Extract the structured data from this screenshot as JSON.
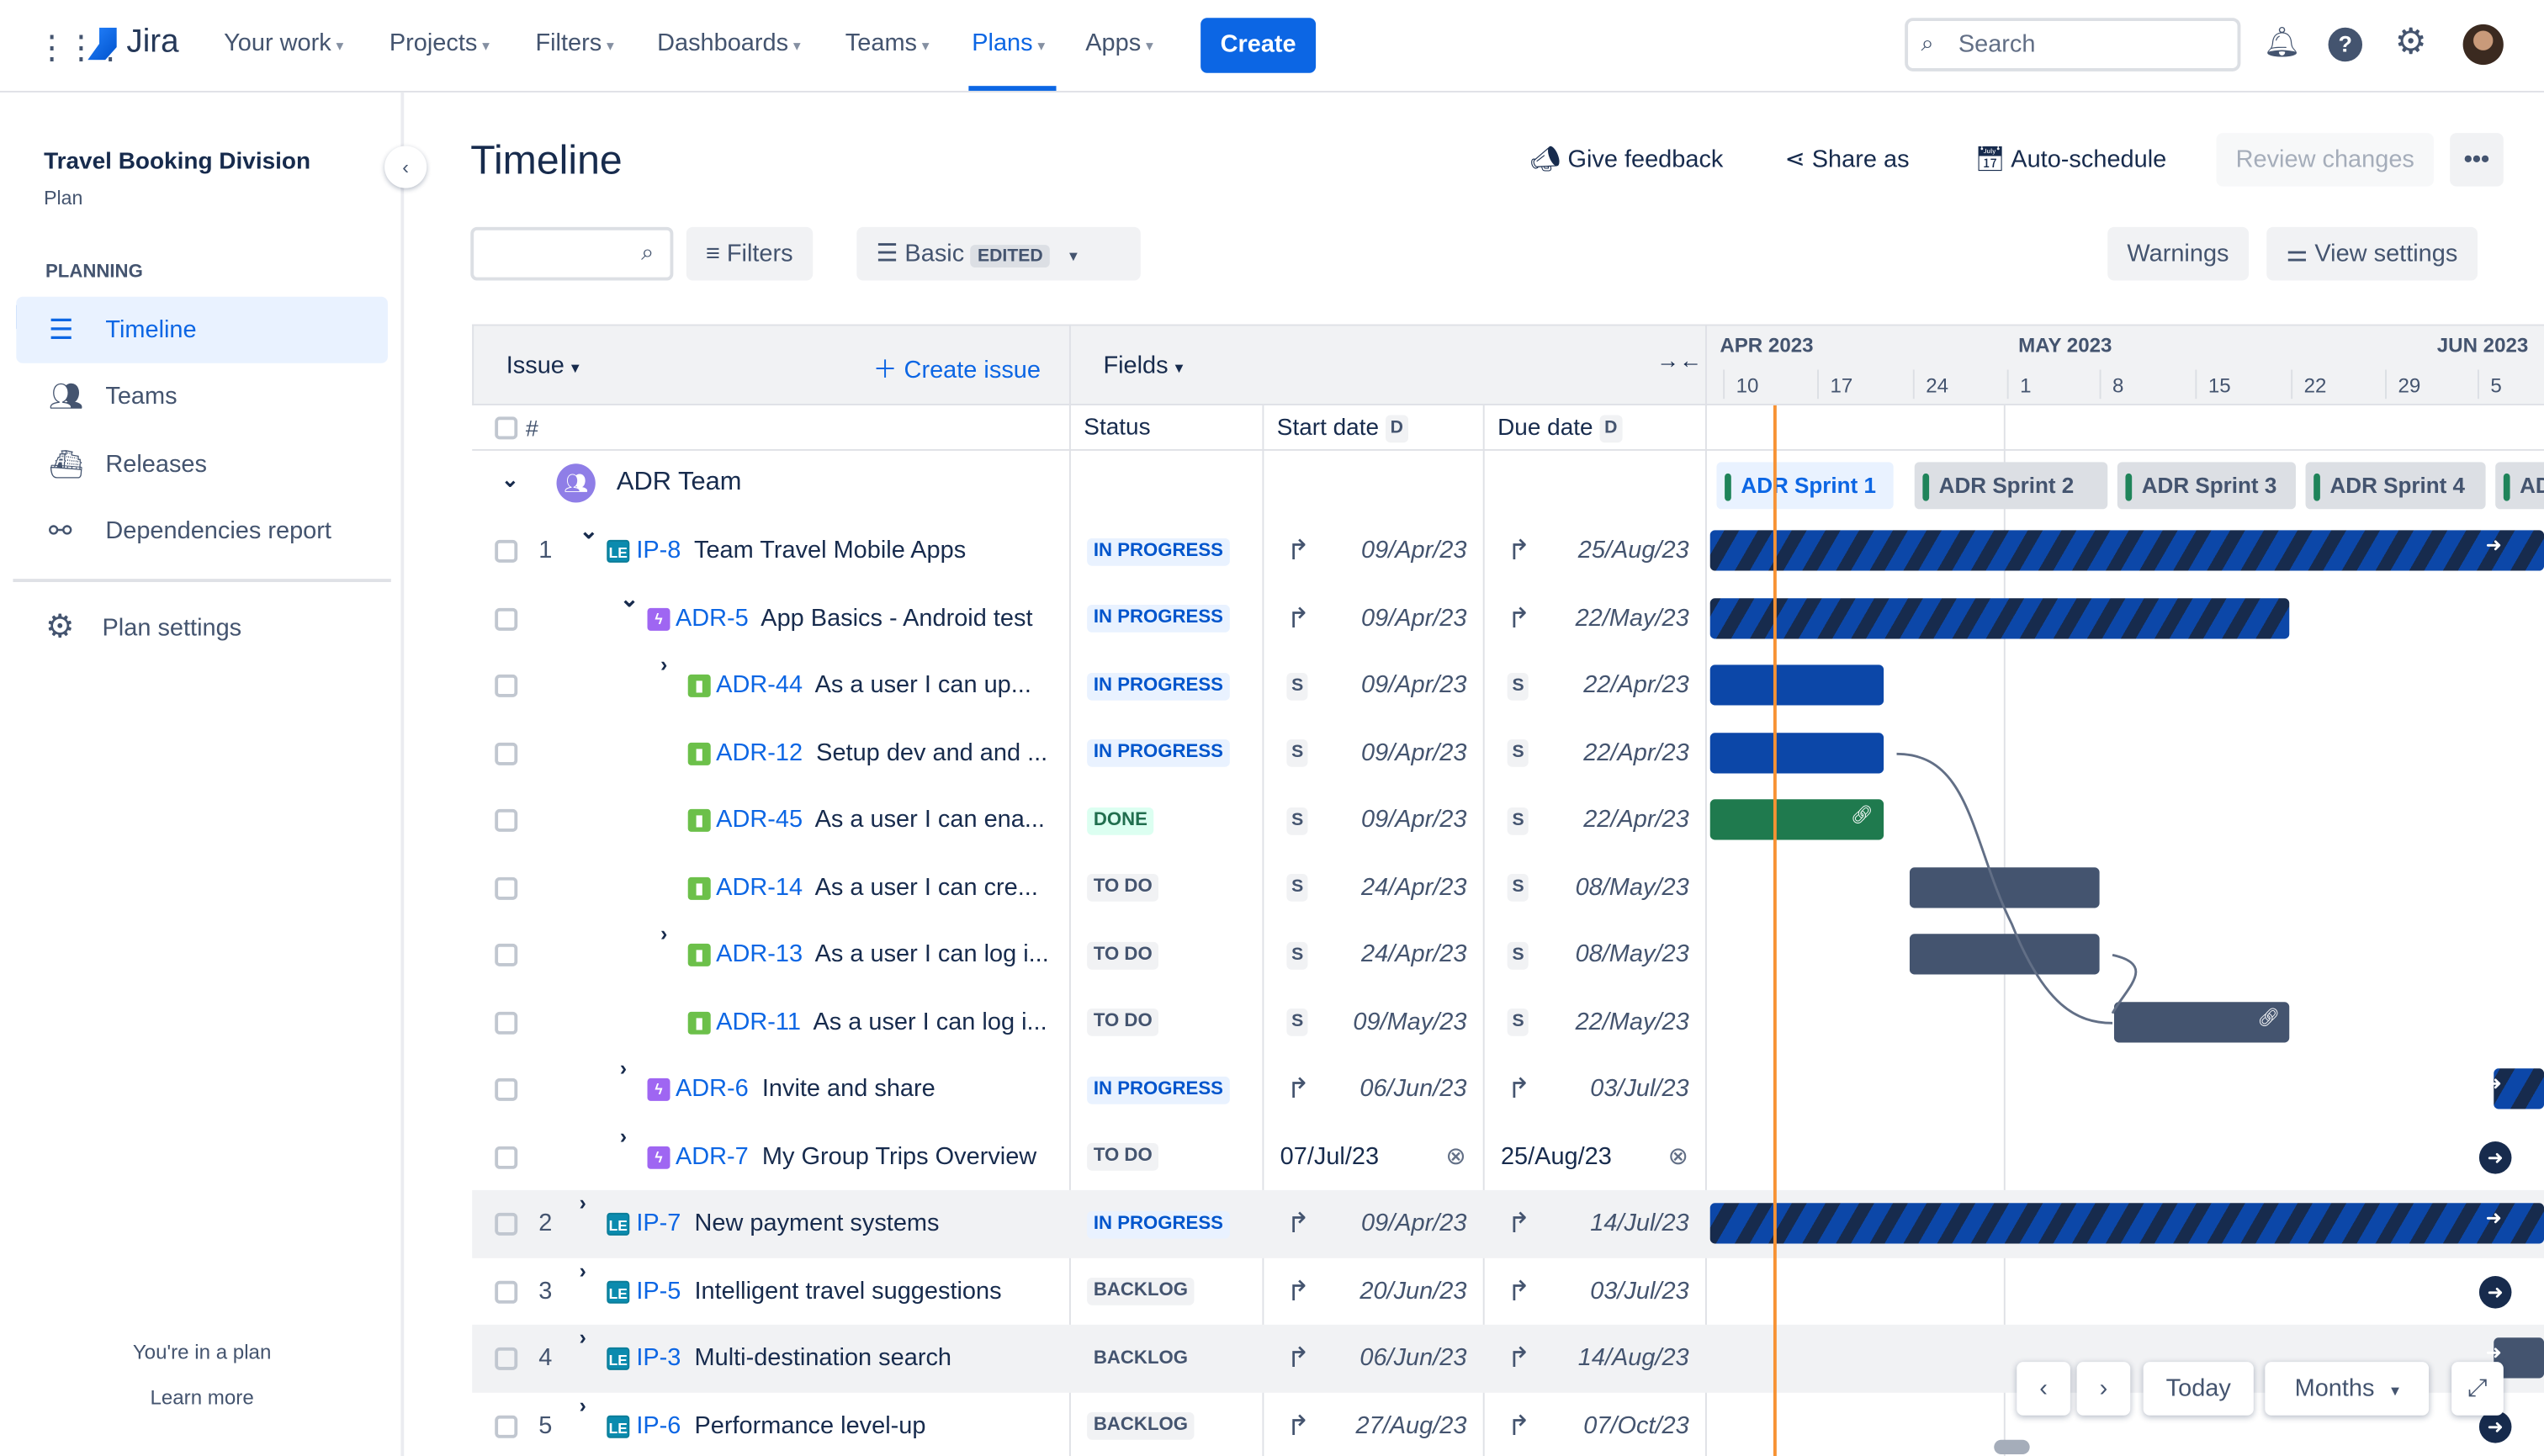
{
  "nav": {
    "product": "Jira",
    "items": [
      {
        "label": "Your work"
      },
      {
        "label": "Projects"
      },
      {
        "label": "Filters"
      },
      {
        "label": "Dashboards"
      },
      {
        "label": "Teams"
      },
      {
        "label": "Plans",
        "active": true
      },
      {
        "label": "Apps"
      }
    ],
    "create": "Create",
    "search_placeholder": "Search"
  },
  "sidebar": {
    "plan_name": "Travel Booking Division",
    "plan_type": "Plan",
    "section": "PLANNING",
    "items": [
      {
        "label": "Timeline",
        "selected": true
      },
      {
        "label": "Teams"
      },
      {
        "label": "Releases"
      },
      {
        "label": "Dependencies report"
      }
    ],
    "settings": "Plan settings",
    "footer_text": "You're in a plan",
    "footer_link": "Learn more"
  },
  "page": {
    "title": "Timeline",
    "actions": {
      "feedback": "Give feedback",
      "share": "Share as",
      "autoschedule": "Auto-schedule",
      "review": "Review changes"
    }
  },
  "toolbar": {
    "search_value": "",
    "filters": "Filters",
    "view": "Basic",
    "view_badge": "EDITED",
    "warnings": "Warnings",
    "view_settings": "View settings"
  },
  "table": {
    "issue_header": "Issue",
    "create_issue": "Create issue",
    "fields": "Fields",
    "hash": "#",
    "status": "Status",
    "start_date": "Start date",
    "due_date": "Due date",
    "date_badge": "D",
    "team": "ADR Team"
  },
  "timeline": {
    "months": [
      "APR 2023",
      "MAY 2023",
      "JUN 2023"
    ],
    "weeks": [
      "10",
      "17",
      "24",
      "1",
      "8",
      "15",
      "22",
      "29",
      "5"
    ],
    "today": "14/Apr/23",
    "sprints": [
      "ADR Sprint 1",
      "ADR Sprint 2",
      "ADR Sprint 3",
      "ADR Sprint 4",
      "AD"
    ]
  },
  "rows": [
    {
      "num": "1",
      "level": 0,
      "expand": "down",
      "type": "LE",
      "key": "IP-8",
      "summary": "Team Travel Mobile Apps",
      "status": "IN PROGRESS",
      "start_icon": "arrow",
      "start": "09/Apr/23",
      "due_icon": "arrow",
      "due": "25/Aug/23",
      "bar": "stripe"
    },
    {
      "num": "",
      "level": 1,
      "expand": "down",
      "type": "epic",
      "key": "ADR-5",
      "summary": "App Basics - Android test",
      "status": "IN PROGRESS",
      "start_icon": "arrow",
      "start": "09/Apr/23",
      "due_icon": "arrow",
      "due": "22/May/23",
      "bar": "stripe"
    },
    {
      "num": "",
      "level": 2,
      "expand": "right",
      "type": "story",
      "key": "ADR-44",
      "summary": "As a user I can up...",
      "status": "IN PROGRESS",
      "start_icon": "S",
      "start": "09/Apr/23",
      "due_icon": "S",
      "due": "22/Apr/23",
      "bar": "blue"
    },
    {
      "num": "",
      "level": 2,
      "expand": "none",
      "type": "story",
      "key": "ADR-12",
      "summary": "Setup dev and and ...",
      "status": "IN PROGRESS",
      "start_icon": "S",
      "start": "09/Apr/23",
      "due_icon": "S",
      "due": "22/Apr/23",
      "bar": "blue"
    },
    {
      "num": "",
      "level": 2,
      "expand": "none",
      "type": "story",
      "key": "ADR-45",
      "summary": "As a user I can ena...",
      "status": "DONE",
      "start_icon": "S",
      "start": "09/Apr/23",
      "due_icon": "S",
      "due": "22/Apr/23",
      "bar": "green"
    },
    {
      "num": "",
      "level": 2,
      "expand": "none",
      "type": "story",
      "key": "ADR-14",
      "summary": "As a user I can cre...",
      "status": "TO DO",
      "start_icon": "S",
      "start": "24/Apr/23",
      "due_icon": "S",
      "due": "08/May/23",
      "bar": "todo"
    },
    {
      "num": "",
      "level": 2,
      "expand": "right",
      "type": "story",
      "key": "ADR-13",
      "summary": "As a user I can log i...",
      "status": "TO DO",
      "start_icon": "S",
      "start": "24/Apr/23",
      "due_icon": "S",
      "due": "08/May/23",
      "bar": "todo"
    },
    {
      "num": "",
      "level": 2,
      "expand": "none",
      "type": "story",
      "key": "ADR-11",
      "summary": "As a user I can log i...",
      "status": "TO DO",
      "start_icon": "S",
      "start": "09/May/23",
      "due_icon": "S",
      "due": "22/May/23",
      "bar": "todo"
    },
    {
      "num": "",
      "level": 1,
      "expand": "right",
      "type": "epic",
      "key": "ADR-6",
      "summary": "Invite and share",
      "status": "IN PROGRESS",
      "start_icon": "arrow",
      "start": "06/Jun/23",
      "due_icon": "arrow",
      "due": "03/Jul/23",
      "bar": "stripe"
    },
    {
      "num": "",
      "level": 1,
      "expand": "right",
      "type": "epic",
      "key": "ADR-7",
      "summary": "My Group Trips Overview",
      "status": "TO DO",
      "start_icon": "none",
      "start": "07/Jul/23",
      "due_icon": "none",
      "due": "25/Aug/23",
      "bar": "offscreen",
      "clearable": true
    },
    {
      "num": "2",
      "level": 0,
      "expand": "right",
      "type": "LE",
      "key": "IP-7",
      "summary": "New payment systems",
      "status": "IN PROGRESS",
      "start_icon": "arrow",
      "start": "09/Apr/23",
      "due_icon": "arrow",
      "due": "14/Jul/23",
      "bar": "stripe",
      "gray": true
    },
    {
      "num": "3",
      "level": 0,
      "expand": "right",
      "type": "LE",
      "key": "IP-5",
      "summary": "Intelligent travel suggestions",
      "status": "BACKLOG",
      "start_icon": "arrow",
      "start": "20/Jun/23",
      "due_icon": "arrow",
      "due": "03/Jul/23",
      "bar": "offscreen"
    },
    {
      "num": "4",
      "level": 0,
      "expand": "right",
      "type": "LE",
      "key": "IP-3",
      "summary": "Multi-destination search",
      "status": "BACKLOG",
      "start_icon": "arrow",
      "start": "06/Jun/23",
      "due_icon": "arrow",
      "due": "14/Aug/23",
      "bar": "todo",
      "gray": true
    },
    {
      "num": "5",
      "level": 0,
      "expand": "right",
      "type": "LE",
      "key": "IP-6",
      "summary": "Performance level-up",
      "status": "BACKLOG",
      "start_icon": "arrow",
      "start": "27/Aug/23",
      "due_icon": "arrow",
      "due": "07/Oct/23",
      "bar": "offscreen"
    }
  ],
  "controls": {
    "today": "Today",
    "scale": "Months"
  },
  "colors": {
    "accent": "#0c66e4",
    "today_line": "#f79233",
    "done": "#1f7a4e",
    "in_progress": "#0c47a8",
    "todo": "#44546f"
  }
}
